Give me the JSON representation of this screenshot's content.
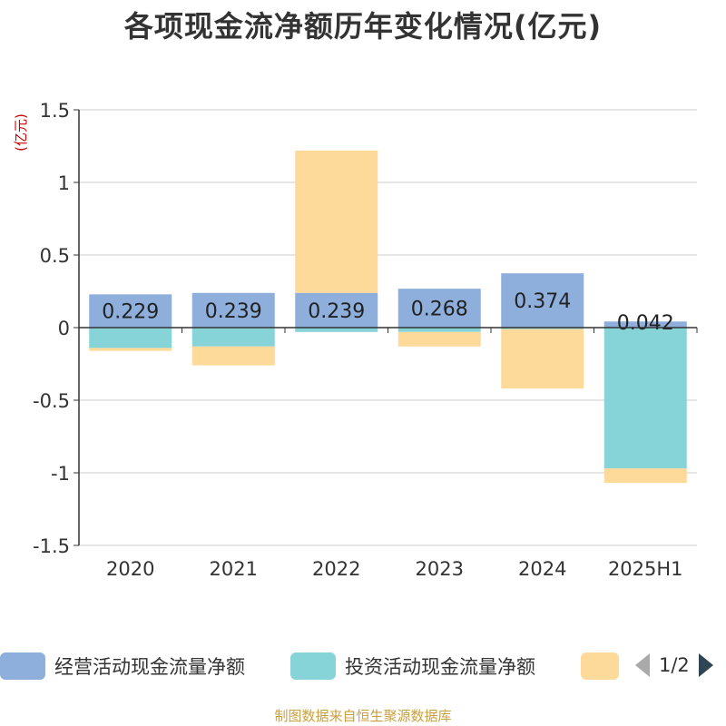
{
  "title": "各项现金流净额历年变化情况(亿元)",
  "source": "制图数据来自恒生聚源数据库",
  "legend": {
    "items": [
      {
        "label": "经营活动现金流量净额",
        "color": "#8eaedc"
      },
      {
        "label": "投资活动现金流量净额",
        "color": "#86d4d8"
      },
      {
        "label": "",
        "color": "#fdd99a"
      }
    ],
    "page": "1/2"
  },
  "chart_data": {
    "type": "bar",
    "stacked": true,
    "categories": [
      "2020",
      "2021",
      "2022",
      "2023",
      "2024",
      "2025H1"
    ],
    "ylabel": "(亿元)",
    "ylim": [
      -1.5,
      1.5
    ],
    "yticks": [
      1.5,
      1,
      0.5,
      0,
      -0.5,
      -1,
      -1.5
    ],
    "ytick_labels": [
      "1.5",
      "1",
      "0.5",
      "0",
      "-0.5",
      "-1",
      "-1.5"
    ],
    "grid": true,
    "legend_position": "bottom",
    "series": [
      {
        "name": "经营活动现金流量净额",
        "color": "#8eaedc",
        "values": [
          0.229,
          0.239,
          0.239,
          0.268,
          0.374,
          0.042
        ],
        "labels": [
          "0.229",
          "0.239",
          "0.239",
          "0.268",
          "0.374",
          "0.042"
        ]
      },
      {
        "name": "投资活动现金流量净额",
        "color": "#86d4d8",
        "values": [
          -0.14,
          -0.13,
          -0.03,
          -0.03,
          -0.01,
          -0.97
        ]
      },
      {
        "color": "#fdd99a",
        "values": [
          -0.02,
          -0.13,
          0.98,
          -0.1,
          -0.41,
          -0.1
        ]
      }
    ]
  }
}
